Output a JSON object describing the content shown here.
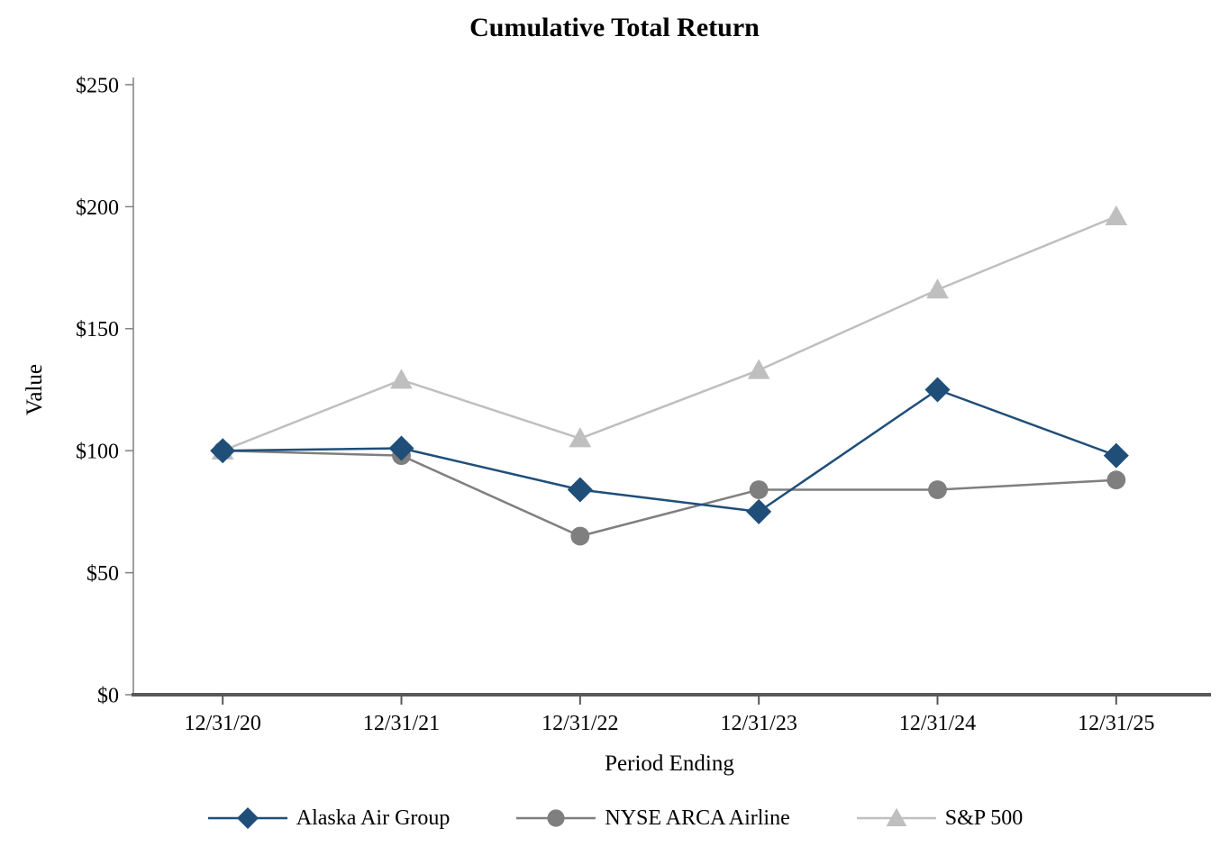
{
  "chart_data": {
    "type": "line",
    "title": "Cumulative Total Return",
    "xlabel": "Period Ending",
    "ylabel": "Value",
    "categories": [
      "12/31/20",
      "12/31/21",
      "12/31/22",
      "12/31/23",
      "12/31/24",
      "12/31/25"
    ],
    "ylim": [
      0,
      250
    ],
    "yticks": [
      0,
      50,
      100,
      150,
      200,
      250
    ],
    "ytick_labels": [
      "$0",
      "$50",
      "$100",
      "$150",
      "$200",
      "$250"
    ],
    "grid": false,
    "legend_position": "bottom",
    "series": [
      {
        "name": "Alaska Air Group",
        "marker": "diamond",
        "color": "#1f4e79",
        "values": [
          100,
          101,
          84,
          75,
          125,
          98
        ]
      },
      {
        "name": "NYSE ARCA Airline",
        "marker": "circle",
        "color": "#7f7f7f",
        "values": [
          100,
          98,
          65,
          84,
          84,
          88
        ]
      },
      {
        "name": "S&P 500",
        "marker": "triangle",
        "color": "#bfbfbf",
        "values": [
          100,
          129,
          105,
          133,
          166,
          196
        ]
      }
    ],
    "colors": {
      "baseline_axis": "#595959",
      "left_axis": "#808080",
      "tick_text": "#000000"
    }
  }
}
